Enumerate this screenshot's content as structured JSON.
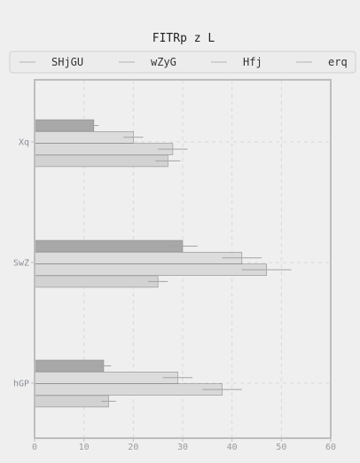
{
  "chart_data": {
    "type": "bar",
    "orientation": "horizontal",
    "title": "FITRp z L",
    "xlabel": "",
    "ylabel": "",
    "xlim": [
      0,
      60
    ],
    "x_ticks": [
      "0",
      "10",
      "20",
      "30",
      "40",
      "50",
      "60"
    ],
    "grid": true,
    "legend_position": "top",
    "categories": [
      "Xq",
      "SwZ",
      "hGP"
    ],
    "series": [
      {
        "name": "SHjGU",
        "color": "#a8a8a8",
        "values": [
          12,
          30,
          14
        ],
        "errors": [
          1,
          3,
          1.5
        ]
      },
      {
        "name": "wZyG",
        "color": "#dcdcdc",
        "values": [
          20,
          42,
          29
        ],
        "errors": [
          2,
          4,
          3
        ]
      },
      {
        "name": "Hfj",
        "color": "#d9d9d9",
        "values": [
          28,
          47,
          38
        ],
        "errors": [
          3,
          5,
          4
        ]
      },
      {
        "name": "erq",
        "color": "#d2d2d2",
        "values": [
          27,
          25,
          15
        ],
        "errors": [
          2.5,
          2,
          1.5
        ]
      }
    ]
  }
}
